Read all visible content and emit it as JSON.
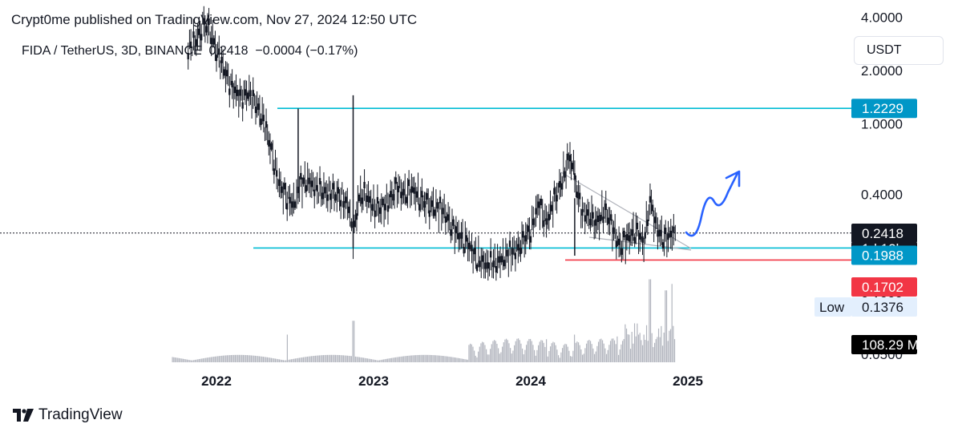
{
  "header": {
    "publisher_text": "Crypt0me published on TradingView.com, Nov 27, 2024 12:50 UTC",
    "symbol_text": "FIDA / TetherUS, 3D, BINANCE  0.2418  −0.0004 (−0.17%)",
    "currency_label": "USDT"
  },
  "footer": {
    "brand": "TradingView",
    "logo_icon": "tradingview-logo-icon"
  },
  "colors": {
    "cyan": "#00bcd4",
    "cyan_badge": "#0097c7",
    "red": "#f23645",
    "price": "#131722",
    "volume": "#b2b5be",
    "arrow": "#2962ff",
    "wedge": "#b0b3bb"
  },
  "chart_data": {
    "type": "candlestick",
    "title": "FIDA / TetherUS, 3D, BINANCE",
    "x_tick_labels": [
      "2022",
      "2023",
      "2024",
      "2025"
    ],
    "y_scale": "log",
    "y_tick_labels": [
      "4.0000",
      "2.0000",
      "1.0000",
      "0.4000",
      "0.2000",
      "0.1000",
      "0.0500"
    ],
    "current_price": 0.2418,
    "change": "−0.0004 (−0.17%)",
    "price_badges": [
      {
        "name": "resistance",
        "label": "1.2229",
        "value": 1.2229,
        "color": "#0097c7"
      },
      {
        "name": "last-price",
        "label": "0.2418",
        "value": 0.2418,
        "color": "#131722"
      },
      {
        "name": "countdown",
        "label": "1d 12h",
        "color": "#131722"
      },
      {
        "name": "support",
        "label": "0.1988",
        "value": 0.1988,
        "color": "#0097c7"
      },
      {
        "name": "stop",
        "label": "0.1702",
        "value": 0.1702,
        "color": "#f23645"
      },
      {
        "name": "low",
        "label": "0.1376",
        "value": 0.1376,
        "prefix": "Low"
      },
      {
        "name": "volume",
        "label": "108.29 M",
        "value": 108.29
      }
    ],
    "horizontal_levels": [
      {
        "name": "resistance-line",
        "value": 1.2229,
        "color": "#00bcd4"
      },
      {
        "name": "support-line",
        "value": 0.1988,
        "color": "#00bcd4"
      },
      {
        "name": "stop-line",
        "value": 0.1702,
        "color": "#f23645"
      }
    ],
    "price_path": [
      [
        2021.82,
        2.7
      ],
      [
        2021.88,
        3.0
      ],
      [
        2021.92,
        3.7
      ],
      [
        2021.96,
        3.3
      ],
      [
        2022.0,
        2.6
      ],
      [
        2022.05,
        2.0
      ],
      [
        2022.1,
        1.6
      ],
      [
        2022.15,
        1.4
      ],
      [
        2022.2,
        1.5
      ],
      [
        2022.25,
        1.3
      ],
      [
        2022.3,
        1.05
      ],
      [
        2022.35,
        0.7
      ],
      [
        2022.4,
        0.45
      ],
      [
        2022.45,
        0.38
      ],
      [
        2022.5,
        0.35
      ],
      [
        2022.52,
        0.44
      ],
      [
        2022.58,
        0.48
      ],
      [
        2022.65,
        0.42
      ],
      [
        2022.75,
        0.4
      ],
      [
        2022.8,
        0.38
      ],
      [
        2022.85,
        0.33
      ],
      [
        2022.87,
        0.21
      ],
      [
        2022.9,
        0.38
      ],
      [
        2022.95,
        0.4
      ],
      [
        2023.0,
        0.34
      ],
      [
        2023.05,
        0.33
      ],
      [
        2023.1,
        0.37
      ],
      [
        2023.15,
        0.44
      ],
      [
        2023.2,
        0.4
      ],
      [
        2023.25,
        0.43
      ],
      [
        2023.3,
        0.37
      ],
      [
        2023.38,
        0.34
      ],
      [
        2023.45,
        0.32
      ],
      [
        2023.5,
        0.26
      ],
      [
        2023.55,
        0.23
      ],
      [
        2023.6,
        0.21
      ],
      [
        2023.65,
        0.175
      ],
      [
        2023.72,
        0.16
      ],
      [
        2023.78,
        0.165
      ],
      [
        2023.85,
        0.18
      ],
      [
        2023.92,
        0.2
      ],
      [
        2024.0,
        0.25
      ],
      [
        2024.05,
        0.35
      ],
      [
        2024.1,
        0.28
      ],
      [
        2024.15,
        0.37
      ],
      [
        2024.2,
        0.48
      ],
      [
        2024.25,
        0.66
      ],
      [
        2024.28,
        0.5
      ],
      [
        2024.32,
        0.32
      ],
      [
        2024.38,
        0.3
      ],
      [
        2024.42,
        0.27
      ],
      [
        2024.47,
        0.33
      ],
      [
        2024.52,
        0.26
      ],
      [
        2024.57,
        0.2
      ],
      [
        2024.62,
        0.23
      ],
      [
        2024.67,
        0.25
      ],
      [
        2024.72,
        0.21
      ],
      [
        2024.76,
        0.37
      ],
      [
        2024.8,
        0.26
      ],
      [
        2024.85,
        0.22
      ],
      [
        2024.9,
        0.24
      ],
      [
        2024.92,
        0.2418
      ]
    ],
    "volume_spikes": [
      [
        2022.45,
        30
      ],
      [
        2022.87,
        45
      ],
      [
        2024.1,
        25
      ],
      [
        2024.28,
        30
      ],
      [
        2024.55,
        28
      ],
      [
        2024.76,
        90
      ],
      [
        2024.86,
        78
      ],
      [
        2024.9,
        85
      ]
    ],
    "annotations": {
      "projection_arrow": "upward zig-zag arrow from current price",
      "descending_trendline": "falling resistance from 2024 high"
    }
  }
}
